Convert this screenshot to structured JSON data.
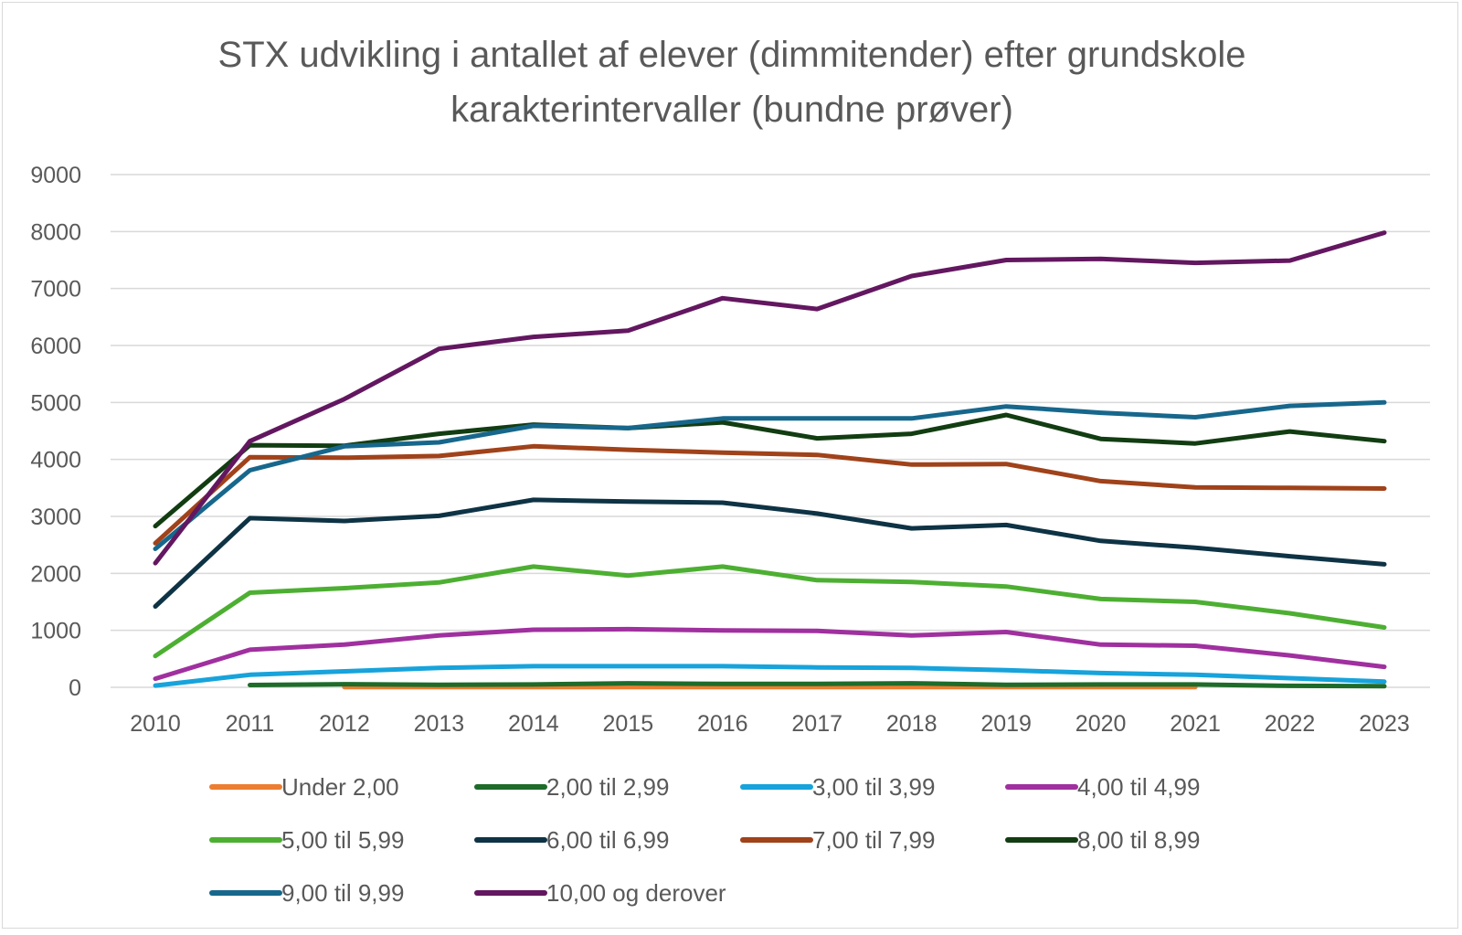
{
  "chart_data": {
    "type": "line",
    "title_lines": [
      "STX udvikling i antallet af elever (dimmitender) efter grundskole",
      "karakterintervaller (bundne prøver)"
    ],
    "xlabel": "",
    "ylabel": "",
    "x": [
      "2010",
      "2011",
      "2012",
      "2013",
      "2014",
      "2015",
      "2016",
      "2017",
      "2018",
      "2019",
      "2020",
      "2021",
      "2022",
      "2023"
    ],
    "ylim": [
      0,
      9000
    ],
    "yticks": [
      0,
      1000,
      2000,
      3000,
      4000,
      5000,
      6000,
      7000,
      8000,
      9000
    ],
    "grid": true,
    "legend_position": "bottom",
    "series": [
      {
        "name": "Under 2,00",
        "color": "#ED7D31",
        "values": [
          null,
          null,
          5,
          5,
          5,
          5,
          5,
          5,
          5,
          5,
          5,
          5,
          null,
          null
        ]
      },
      {
        "name": "2,00 til 2,99",
        "color": "#1E6B2A",
        "values": [
          null,
          40,
          55,
          45,
          50,
          70,
          60,
          60,
          70,
          45,
          50,
          50,
          25,
          20
        ]
      },
      {
        "name": "3,00 til 3,99",
        "color": "#17A3DB",
        "values": [
          30,
          220,
          280,
          340,
          370,
          370,
          370,
          350,
          340,
          300,
          250,
          220,
          160,
          100
        ]
      },
      {
        "name": "4,00 til 4,99",
        "color": "#A0309F",
        "values": [
          150,
          660,
          750,
          910,
          1010,
          1020,
          1000,
          990,
          910,
          970,
          750,
          730,
          560,
          360
        ]
      },
      {
        "name": "5,00 til 5,99",
        "color": "#4DAF32",
        "values": [
          550,
          1660,
          1740,
          1840,
          2120,
          1960,
          2120,
          1880,
          1850,
          1770,
          1550,
          1500,
          1300,
          1050
        ]
      },
      {
        "name": "6,00 til 6,99",
        "color": "#0E3345",
        "values": [
          1420,
          2970,
          2920,
          3010,
          3290,
          3260,
          3240,
          3050,
          2790,
          2850,
          2570,
          2450,
          2300,
          2160
        ]
      },
      {
        "name": "7,00 til 7,99",
        "color": "#A0421A",
        "values": [
          2530,
          4040,
          4030,
          4060,
          4230,
          4170,
          4120,
          4080,
          3910,
          3920,
          3620,
          3510,
          3500,
          3490
        ]
      },
      {
        "name": "8,00 til 8,99",
        "color": "#123D12",
        "values": [
          2830,
          4250,
          4240,
          4450,
          4610,
          4550,
          4650,
          4370,
          4450,
          4780,
          4360,
          4280,
          4490,
          4320
        ]
      },
      {
        "name": "9,00 til 9,99",
        "color": "#17678C",
        "values": [
          2430,
          3810,
          4230,
          4300,
          4590,
          4550,
          4720,
          4720,
          4720,
          4930,
          4820,
          4740,
          4940,
          5000
        ]
      },
      {
        "name": "10,00 og derover",
        "color": "#631760",
        "values": [
          2180,
          4320,
          5060,
          5940,
          6150,
          6260,
          6830,
          6640,
          7220,
          7500,
          7520,
          7450,
          7490,
          7980
        ]
      }
    ]
  }
}
